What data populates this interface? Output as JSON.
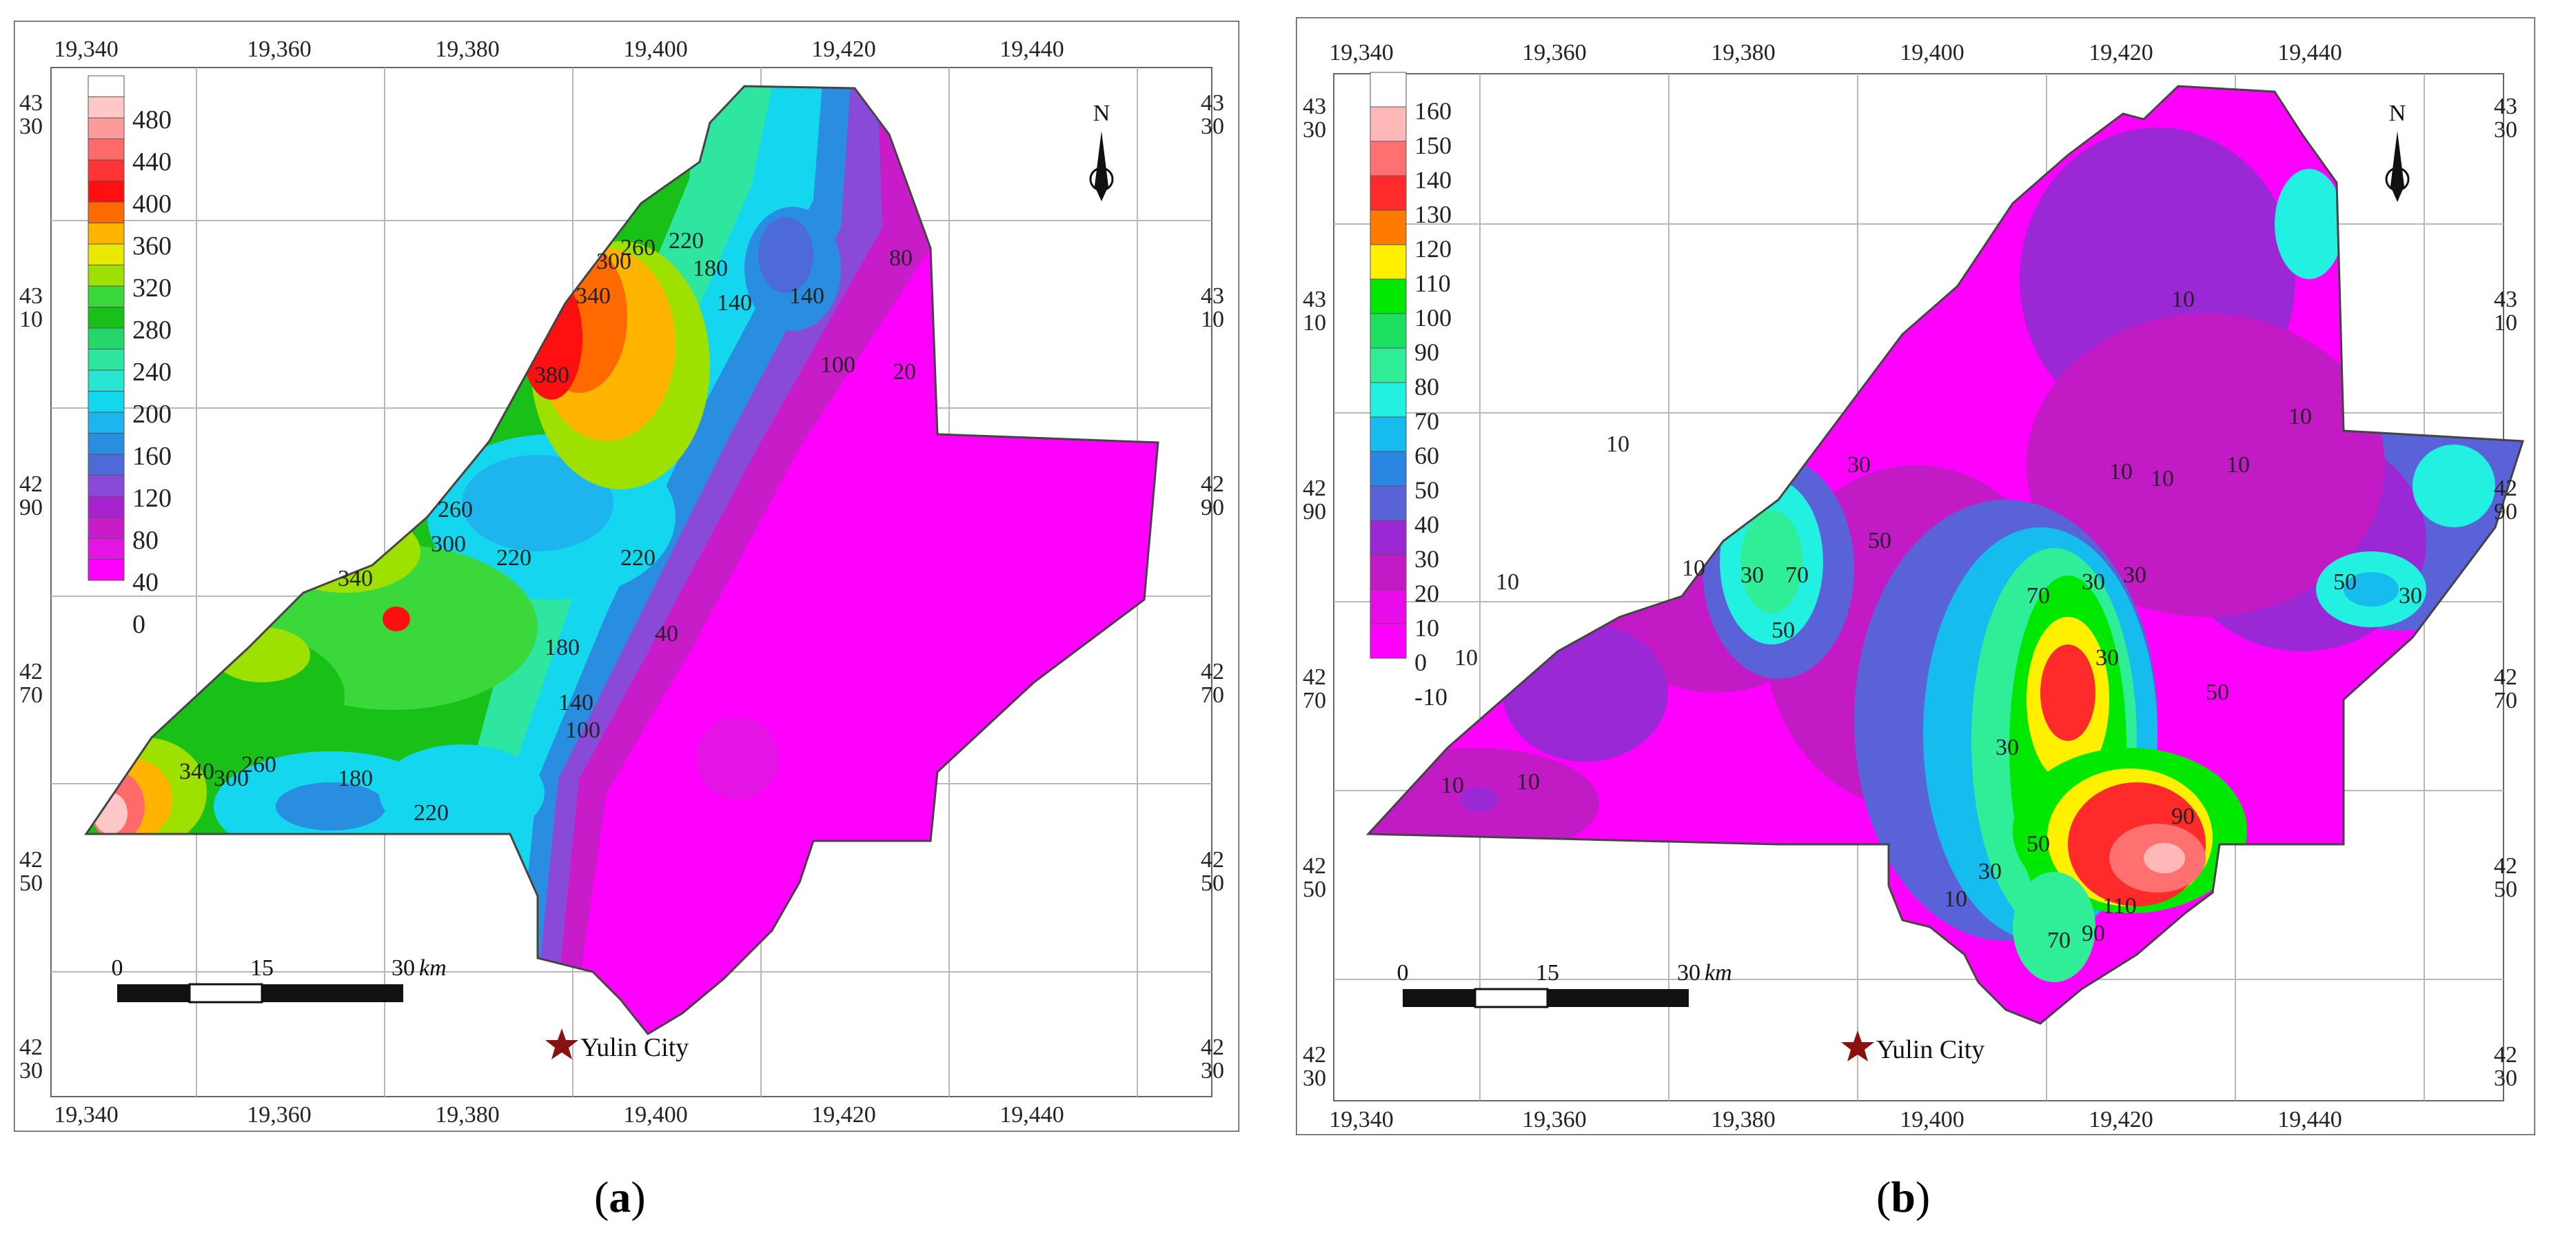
{
  "panels": [
    {
      "id": "a",
      "caption_label": "a",
      "x_ticks": [
        "19,340",
        "19,360",
        "19,380",
        "19,400",
        "19,420",
        "19,440"
      ],
      "y_ticks": [
        [
          "43",
          "30"
        ],
        [
          "43",
          "10"
        ],
        [
          "42",
          "90"
        ],
        [
          "42",
          "70"
        ],
        [
          "42",
          "50"
        ],
        [
          "42",
          "30"
        ]
      ],
      "legend_levels": [
        "480",
        "440",
        "400",
        "360",
        "320",
        "280",
        "240",
        "200",
        "160",
        "120",
        "80",
        "40",
        "0"
      ],
      "legend_colors": [
        "#ffffff",
        "#ffc8c8",
        "#ff9a9a",
        "#ff6b6b",
        "#ff3434",
        "#ff0f0f",
        "#ff6a00",
        "#ffb400",
        "#e8e800",
        "#9ee000",
        "#3ad83a",
        "#18c018",
        "#26d66a",
        "#2ee6a0",
        "#29e6d2",
        "#14d6ee",
        "#1eb4ee",
        "#2a8ee0",
        "#4d6ad8",
        "#8a4ad8",
        "#a624d0",
        "#c81cc8",
        "#e414e4",
        "#ff00ff"
      ],
      "contour_labels": [
        "340",
        "300",
        "260",
        "220",
        "180",
        "140",
        "140",
        "100",
        "20",
        "80",
        "380",
        "260",
        "300",
        "220",
        "220",
        "340",
        "180",
        "140",
        "100",
        "40",
        "340",
        "300",
        "260",
        "180",
        "220"
      ],
      "scale_bar": {
        "ticks": [
          "0",
          "15",
          "30"
        ],
        "unit": "km"
      },
      "north": "N",
      "city_label": "Yulin City",
      "city_color": "#8b1010"
    },
    {
      "id": "b",
      "caption_label": "b",
      "x_ticks": [
        "19,340",
        "19,360",
        "19,380",
        "19,400",
        "19,420",
        "19,440"
      ],
      "y_ticks": [
        [
          "43",
          "30"
        ],
        [
          "43",
          "10"
        ],
        [
          "42",
          "90"
        ],
        [
          "42",
          "70"
        ],
        [
          "42",
          "50"
        ],
        [
          "42",
          "30"
        ]
      ],
      "legend_levels": [
        "160",
        "150",
        "140",
        "130",
        "120",
        "110",
        "100",
        "90",
        "80",
        "70",
        "60",
        "50",
        "40",
        "30",
        "20",
        "10",
        "0",
        "-10"
      ],
      "legend_colors": [
        "#ffffff",
        "#ffb8b8",
        "#ff7070",
        "#ff2a2a",
        "#ff7a00",
        "#fff000",
        "#00e800",
        "#1ee060",
        "#30ee98",
        "#22f0e0",
        "#16bcee",
        "#2a86e0",
        "#5a62d8",
        "#9a28d4",
        "#c21ac4",
        "#e80ce8",
        "#ff00ff"
      ],
      "contour_labels": [
        "10",
        "10",
        "10",
        "10",
        "10",
        "30",
        "70",
        "50",
        "30",
        "10",
        "10",
        "10",
        "10",
        "10",
        "30",
        "70",
        "50",
        "30",
        "50",
        "30",
        "30",
        "90",
        "110",
        "90",
        "70",
        "50",
        "30",
        "10",
        "10",
        "50",
        "30"
      ],
      "scale_bar": {
        "ticks": [
          "0",
          "15",
          "30"
        ],
        "unit": "km"
      },
      "north": "N",
      "city_label": "Yulin City",
      "city_color": "#8b1010"
    }
  ]
}
